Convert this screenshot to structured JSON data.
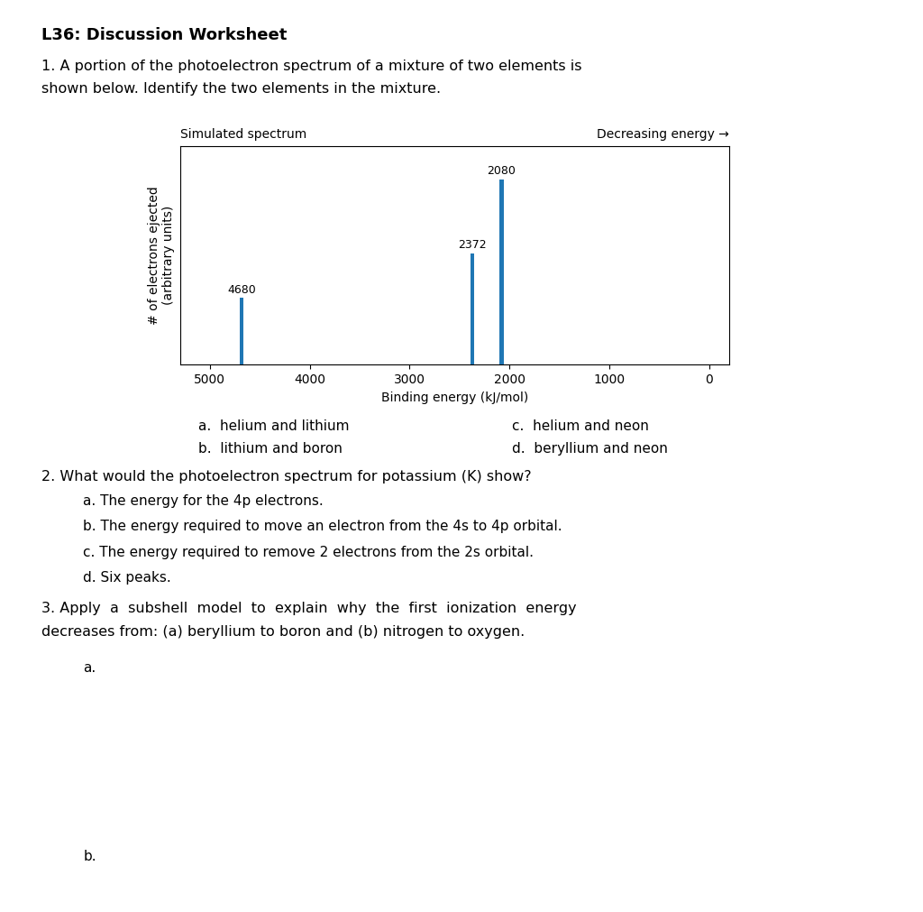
{
  "chart_data": {
    "type": "bar",
    "title": "Simulated spectrum",
    "subtitle": "Decreasing energy →",
    "x_label": "Binding energy (kJ/mol)",
    "y_label": "# of electrons ejected\n(arbitrary units)",
    "x": [
      4680,
      2080,
      2372
    ],
    "values": [
      0.36,
      1.0,
      0.6
    ],
    "xlim": [
      5300,
      -200
    ],
    "xticks": [
      5000,
      4000,
      3000,
      2000,
      1000,
      0
    ],
    "ylim": [
      0,
      1.18
    ],
    "tick_labels": "x",
    "data_labels": true,
    "annotations": [
      "L36: Discussion Worksheet",
      "1. A portion of the photoelectron spectrum of a mixture of two elements is",
      "shown below. Identify the two elements in the mixture.",
      "a.  helium and lithium",
      "b.  lithium and boron",
      "c.  helium and neon",
      "d.  beryllium and neon",
      "2. What would the photoelectron spectrum for potassium (K) show?",
      "a. The energy for the 4p electrons.",
      "b. The energy required to move an electron from the 4s to 4p orbital.",
      "c. The energy required to remove 2 electrons from the 2s orbital.",
      "d. Six peaks.",
      "3. Apply  a  subshell  model  to  explain  why  the  first  ionization  energy",
      "decreases from: (a) beryllium to boron and (b) nitrogen to oxygen.",
      "a.",
      "b."
    ]
  }
}
